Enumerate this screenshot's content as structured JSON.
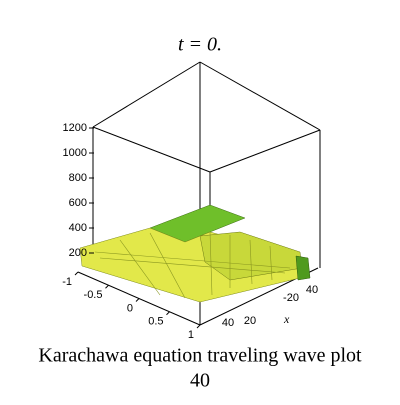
{
  "chart_data": {
    "type": "surface3d",
    "title": "t = 0.",
    "x_label": "x",
    "caption": [
      "Karachawa equation  traveling wave plot",
      "40"
    ],
    "zticks": [
      200,
      400,
      600,
      800,
      1000,
      1200
    ],
    "yticks": [
      -1,
      -0.5,
      0,
      0.5,
      1
    ],
    "xticks": [
      40,
      20,
      -20,
      40
    ]
  }
}
